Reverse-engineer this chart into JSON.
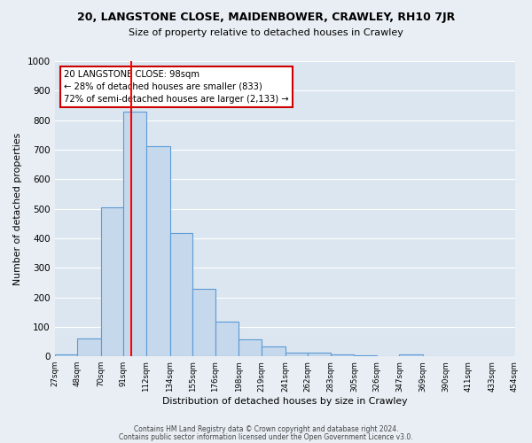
{
  "title": "20, LANGSTONE CLOSE, MAIDENBOWER, CRAWLEY, RH10 7JR",
  "subtitle": "Size of property relative to detached houses in Crawley",
  "xlabel": "Distribution of detached houses by size in Crawley",
  "ylabel": "Number of detached properties",
  "bar_values": [
    8,
    60,
    505,
    828,
    713,
    418,
    230,
    118,
    57,
    33,
    14,
    12,
    7,
    5,
    0,
    8,
    0,
    0,
    0,
    0
  ],
  "bin_labels": [
    "27sqm",
    "48sqm",
    "70sqm",
    "91sqm",
    "112sqm",
    "134sqm",
    "155sqm",
    "176sqm",
    "198sqm",
    "219sqm",
    "241sqm",
    "262sqm",
    "283sqm",
    "305sqm",
    "326sqm",
    "347sqm",
    "369sqm",
    "390sqm",
    "411sqm",
    "433sqm",
    "454sqm"
  ],
  "bar_color": "#c5d8ec",
  "bar_edge_color": "#5b9bd5",
  "fig_bg_color": "#e8eef4",
  "ax_bg_color": "#dce6f0",
  "grid_color": "#ffffff",
  "property_line_x": 98,
  "annotation_line1": "20 LANGSTONE CLOSE: 98sqm",
  "annotation_line2": "← 28% of detached houses are smaller (833)",
  "annotation_line3": "72% of semi-detached houses are larger (2,133) →",
  "annotation_box_color": "#cc0000",
  "ylim": [
    0,
    1000
  ],
  "yticks": [
    0,
    100,
    200,
    300,
    400,
    500,
    600,
    700,
    800,
    900,
    1000
  ],
  "footer1": "Contains HM Land Registry data © Crown copyright and database right 2024.",
  "footer2": "Contains public sector information licensed under the Open Government Licence v3.0.",
  "bin_edges": [
    27,
    48,
    70,
    91,
    112,
    134,
    155,
    176,
    198,
    219,
    241,
    262,
    283,
    305,
    326,
    347,
    369,
    390,
    411,
    433,
    454
  ]
}
